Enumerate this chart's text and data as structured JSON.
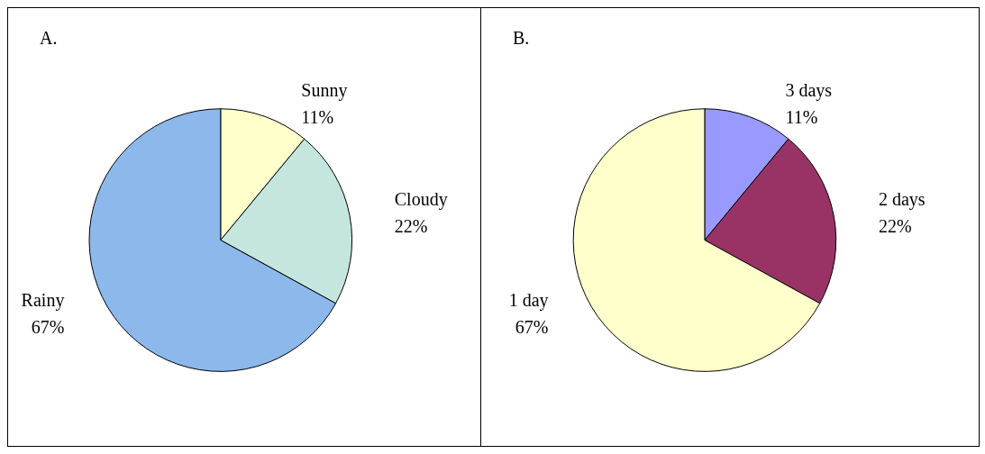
{
  "chart_data": [
    {
      "type": "pie",
      "title": "A.",
      "categories": [
        "Sunny",
        "Cloudy",
        "Rainy"
      ],
      "values": [
        11,
        22,
        67
      ],
      "colors": [
        "#ffffcc",
        "#c4e6de",
        "#8db8ec"
      ],
      "value_labels": [
        "11%",
        "22%",
        "67%"
      ],
      "legend": false
    },
    {
      "type": "pie",
      "title": "B.",
      "categories": [
        "3 days",
        "2 days",
        "1 day"
      ],
      "values": [
        11,
        22,
        67
      ],
      "colors": [
        "#9999ff",
        "#993366",
        "#ffffcc"
      ],
      "value_labels": [
        "11%",
        "22%",
        "67%"
      ],
      "legend": false
    }
  ]
}
